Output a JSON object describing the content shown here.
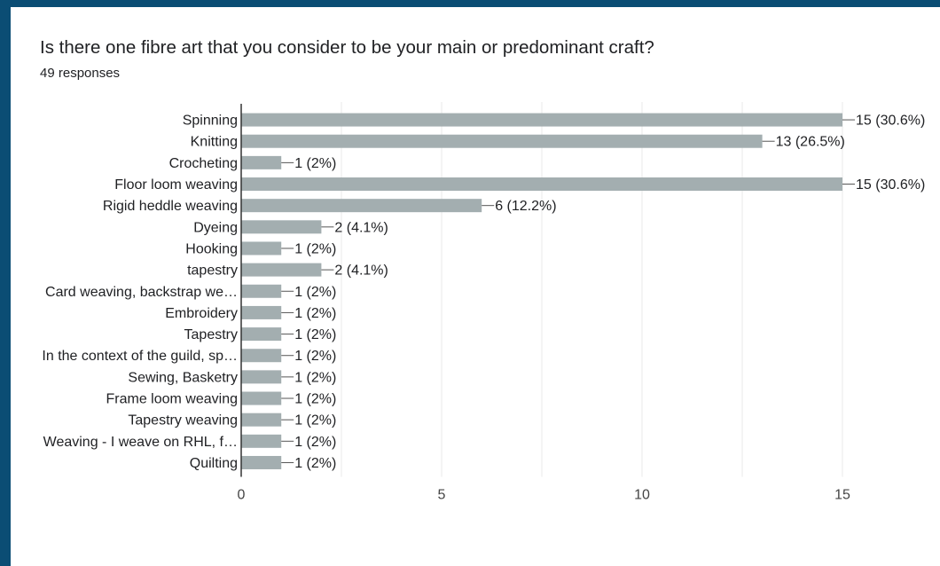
{
  "question": {
    "title": "Is there one fibre art that you consider to be your main or predominant craft?",
    "responses": "49 responses"
  },
  "colors": {
    "background": "#0b4d74",
    "card": "#ffffff",
    "bar": "#a3aeb0",
    "text": "#202124",
    "grid": "#e8e8e8",
    "axis": "#333333"
  },
  "chart_data": {
    "type": "bar",
    "orientation": "horizontal",
    "categories": [
      "Spinning",
      "Knitting",
      "Crocheting",
      "Floor loom weaving",
      "Rigid heddle weaving",
      "Dyeing",
      "Hooking",
      "tapestry",
      "Card weaving, backstrap we…",
      "Embroidery",
      "Tapestry",
      "In the context of the guild, sp…",
      "Sewing, Basketry",
      "Frame loom weaving",
      "Tapestry weaving",
      "Weaving - I weave on RHL, f…",
      "Quilting"
    ],
    "values": [
      15,
      13,
      1,
      15,
      6,
      2,
      1,
      2,
      1,
      1,
      1,
      1,
      1,
      1,
      1,
      1,
      1
    ],
    "data_labels": [
      "15 (30.6%)",
      "13 (26.5%)",
      "1 (2%)",
      "15 (30.6%)",
      "6 (12.2%)",
      "2 (4.1%)",
      "1 (2%)",
      "2 (4.1%)",
      "1 (2%)",
      "1 (2%)",
      "1 (2%)",
      "1 (2%)",
      "1 (2%)",
      "1 (2%)",
      "1 (2%)",
      "1 (2%)",
      "1 (2%)"
    ],
    "xlim": [
      0,
      15
    ],
    "xticks": [
      0,
      5,
      10,
      15
    ],
    "xtick_labels": [
      "0",
      "5",
      "10",
      "15"
    ],
    "grid": true,
    "legend": "none"
  }
}
